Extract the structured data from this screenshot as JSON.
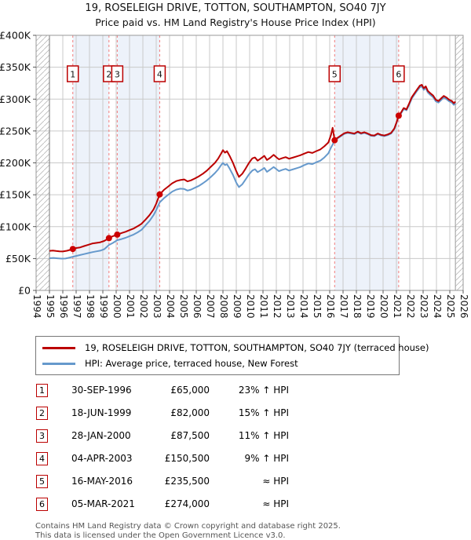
{
  "header": {
    "title": "19, ROSELEIGH DRIVE, TOTTON, SOUTHAMPTON, SO40 7JY",
    "subtitle": "Price paid vs. HM Land Registry's House Price Index (HPI)"
  },
  "legend": {
    "entries": [
      {
        "label": "19, ROSELEIGH DRIVE, TOTTON, SOUTHAMPTON, SO40 7JY (terraced house)",
        "color": "#bb0000"
      },
      {
        "label": "HPI: Average price, terraced house, New Forest",
        "color": "#6699cc"
      }
    ]
  },
  "table": {
    "rows": [
      {
        "num": "1",
        "date": "30-SEP-1996",
        "price": "£65,000",
        "hpi": "23% ↑ HPI"
      },
      {
        "num": "2",
        "date": "18-JUN-1999",
        "price": "£82,000",
        "hpi": "15% ↑ HPI"
      },
      {
        "num": "3",
        "date": "28-JAN-2000",
        "price": "£87,500",
        "hpi": "11% ↑ HPI"
      },
      {
        "num": "4",
        "date": "04-APR-2003",
        "price": "£150,500",
        "hpi": "9% ↑ HPI"
      },
      {
        "num": "5",
        "date": "16-MAY-2016",
        "price": "£235,500",
        "hpi": "≈ HPI"
      },
      {
        "num": "6",
        "date": "05-MAR-2021",
        "price": "£274,000",
        "hpi": "≈ HPI"
      }
    ]
  },
  "footer": {
    "line1": "Contains HM Land Registry data © Crown copyright and database right 2025.",
    "line2": "This data is licensed under the Open Government Licence v3.0."
  },
  "chart_data": {
    "type": "line",
    "title": "19, ROSELEIGH DRIVE, TOTTON, SOUTHAMPTON, SO40 7JY",
    "subtitle": "Price paid vs. HM Land Registry's House Price Index (HPI)",
    "xlabel": "",
    "ylabel": "",
    "x_range": [
      1994,
      2026
    ],
    "y_range_thousands": [
      0,
      400
    ],
    "unit": "GBP_thousands",
    "grid": true,
    "x_ticks": [
      1994,
      1995,
      1996,
      1997,
      1998,
      1999,
      2000,
      2001,
      2002,
      2003,
      2004,
      2005,
      2006,
      2007,
      2008,
      2009,
      2010,
      2011,
      2012,
      2013,
      2014,
      2015,
      2016,
      2017,
      2018,
      2019,
      2020,
      2021,
      2022,
      2023,
      2024,
      2025,
      2026
    ],
    "y_tick_values": [
      0,
      50,
      100,
      150,
      200,
      250,
      300,
      350,
      400
    ],
    "y_tick_labels": [
      "£0",
      "£50K",
      "£100K",
      "£150K",
      "£200K",
      "£250K",
      "£300K",
      "£350K",
      "£400K"
    ],
    "data_start": 1995.0,
    "data_end": 2025.42,
    "hatch_regions": [
      [
        1994,
        1995.0
      ],
      [
        2025.42,
        2026
      ]
    ],
    "shaded_bands": [
      [
        1996.75,
        1999.46
      ],
      [
        2000.08,
        2003.26
      ],
      [
        2016.37,
        2021.17
      ]
    ],
    "band_color": "#edf2fa",
    "grid_color": "#c9c9c9",
    "sale_line_color": "#f37c7c",
    "marker_box_color": "#bb0000",
    "sales": [
      {
        "n": "1",
        "x": 1996.75,
        "y": 65,
        "date": "30-SEP-1996"
      },
      {
        "n": "2",
        "x": 1999.46,
        "y": 82,
        "date": "18-JUN-1999"
      },
      {
        "n": "3",
        "x": 2000.08,
        "y": 87.5,
        "date": "28-JAN-2000"
      },
      {
        "n": "4",
        "x": 2003.26,
        "y": 150.5,
        "date": "04-APR-2003"
      },
      {
        "n": "5",
        "x": 2016.37,
        "y": 235.5,
        "date": "16-MAY-2016"
      },
      {
        "n": "6",
        "x": 2021.17,
        "y": 274,
        "date": "05-MAR-2021"
      }
    ],
    "series": [
      {
        "name": "19, ROSELEIGH DRIVE, TOTTON, SOUTHAMPTON, SO40 7JY (terraced house)",
        "color": "#bb0000",
        "points": [
          [
            1995.0,
            62
          ],
          [
            1995.25,
            62.5
          ],
          [
            1995.5,
            61.8
          ],
          [
            1995.75,
            61.2
          ],
          [
            1996.0,
            61
          ],
          [
            1996.3,
            62.2
          ],
          [
            1996.55,
            63.5
          ],
          [
            1996.75,
            65
          ],
          [
            1997.0,
            66.5
          ],
          [
            1997.3,
            67.5
          ],
          [
            1997.6,
            69.5
          ],
          [
            1997.9,
            71.5
          ],
          [
            1998.2,
            73.5
          ],
          [
            1998.5,
            74.5
          ],
          [
            1998.8,
            75.5
          ],
          [
            1999.1,
            77.5
          ],
          [
            1999.46,
            82
          ],
          [
            1999.75,
            85
          ],
          [
            2000.08,
            87.5
          ],
          [
            2000.4,
            90
          ],
          [
            2000.7,
            92
          ],
          [
            2001.0,
            94.5
          ],
          [
            2001.3,
            97
          ],
          [
            2001.6,
            100.5
          ],
          [
            2001.9,
            104.5
          ],
          [
            2002.2,
            111
          ],
          [
            2002.5,
            118
          ],
          [
            2002.8,
            127
          ],
          [
            2003.0,
            136
          ],
          [
            2003.26,
            150.5
          ],
          [
            2003.6,
            158
          ],
          [
            2003.9,
            163
          ],
          [
            2004.2,
            168
          ],
          [
            2004.5,
            171.5
          ],
          [
            2004.8,
            173
          ],
          [
            2005.1,
            174
          ],
          [
            2005.35,
            171
          ],
          [
            2005.6,
            172.5
          ],
          [
            2005.9,
            175.5
          ],
          [
            2006.2,
            179
          ],
          [
            2006.5,
            183
          ],
          [
            2006.8,
            188
          ],
          [
            2007.1,
            194
          ],
          [
            2007.4,
            200
          ],
          [
            2007.65,
            207
          ],
          [
            2007.85,
            214
          ],
          [
            2008.0,
            220
          ],
          [
            2008.15,
            216
          ],
          [
            2008.3,
            218.5
          ],
          [
            2008.5,
            211
          ],
          [
            2008.75,
            200
          ],
          [
            2009.0,
            187
          ],
          [
            2009.2,
            178
          ],
          [
            2009.45,
            183
          ],
          [
            2009.7,
            191
          ],
          [
            2009.95,
            200
          ],
          [
            2010.2,
            207
          ],
          [
            2010.4,
            208.5
          ],
          [
            2010.6,
            203.5
          ],
          [
            2010.85,
            207
          ],
          [
            2011.1,
            211
          ],
          [
            2011.3,
            204.5
          ],
          [
            2011.55,
            208
          ],
          [
            2011.8,
            212.5
          ],
          [
            2012.05,
            208
          ],
          [
            2012.2,
            205.5
          ],
          [
            2012.45,
            207.5
          ],
          [
            2012.7,
            209
          ],
          [
            2012.95,
            206.5
          ],
          [
            2013.2,
            208
          ],
          [
            2013.5,
            210
          ],
          [
            2013.8,
            212
          ],
          [
            2014.1,
            214.5
          ],
          [
            2014.4,
            217
          ],
          [
            2014.7,
            215.5
          ],
          [
            2015.0,
            218.5
          ],
          [
            2015.3,
            221
          ],
          [
            2015.6,
            226
          ],
          [
            2015.9,
            232
          ],
          [
            2016.1,
            244
          ],
          [
            2016.22,
            255
          ],
          [
            2016.37,
            235.5
          ],
          [
            2016.6,
            239.5
          ],
          [
            2016.85,
            243
          ],
          [
            2017.1,
            246.5
          ],
          [
            2017.35,
            248
          ],
          [
            2017.6,
            247
          ],
          [
            2017.85,
            246
          ],
          [
            2018.1,
            249
          ],
          [
            2018.35,
            246.5
          ],
          [
            2018.6,
            248
          ],
          [
            2018.85,
            246
          ],
          [
            2019.1,
            243.5
          ],
          [
            2019.35,
            243
          ],
          [
            2019.6,
            246
          ],
          [
            2019.85,
            244
          ],
          [
            2020.1,
            243
          ],
          [
            2020.35,
            244.5
          ],
          [
            2020.6,
            247
          ],
          [
            2020.85,
            254
          ],
          [
            2021.0,
            263
          ],
          [
            2021.17,
            274
          ],
          [
            2021.35,
            279
          ],
          [
            2021.55,
            286
          ],
          [
            2021.75,
            284
          ],
          [
            2021.95,
            293
          ],
          [
            2022.15,
            303
          ],
          [
            2022.35,
            309
          ],
          [
            2022.55,
            315
          ],
          [
            2022.75,
            321
          ],
          [
            2022.9,
            322.5
          ],
          [
            2023.05,
            317
          ],
          [
            2023.2,
            320
          ],
          [
            2023.35,
            313
          ],
          [
            2023.55,
            309
          ],
          [
            2023.75,
            305.5
          ],
          [
            2023.95,
            299
          ],
          [
            2024.15,
            297
          ],
          [
            2024.35,
            301
          ],
          [
            2024.55,
            305
          ],
          [
            2024.75,
            302.5
          ],
          [
            2024.95,
            299
          ],
          [
            2025.15,
            297
          ],
          [
            2025.3,
            293.5
          ],
          [
            2025.42,
            296
          ]
        ]
      },
      {
        "name": "HPI: Average price, terraced house, New Forest",
        "color": "#6699cc",
        "points": [
          [
            1995.0,
            50.5
          ],
          [
            1995.3,
            51
          ],
          [
            1995.6,
            50.3
          ],
          [
            1995.9,
            49.8
          ],
          [
            1996.2,
            50
          ],
          [
            1996.5,
            51.5
          ],
          [
            1996.75,
            52.8
          ],
          [
            1997.0,
            54
          ],
          [
            1997.3,
            55.5
          ],
          [
            1997.6,
            57
          ],
          [
            1997.9,
            58.5
          ],
          [
            1998.2,
            60
          ],
          [
            1998.5,
            61.2
          ],
          [
            1998.8,
            62.3
          ],
          [
            1999.1,
            64.5
          ],
          [
            1999.46,
            71.3
          ],
          [
            1999.75,
            74.5
          ],
          [
            2000.08,
            78.8
          ],
          [
            2000.4,
            80.5
          ],
          [
            2000.7,
            82.5
          ],
          [
            2001.0,
            85
          ],
          [
            2001.3,
            87.5
          ],
          [
            2001.6,
            91
          ],
          [
            2001.9,
            95
          ],
          [
            2002.2,
            102
          ],
          [
            2002.5,
            109
          ],
          [
            2002.8,
            118
          ],
          [
            2003.0,
            126
          ],
          [
            2003.26,
            138
          ],
          [
            2003.6,
            145
          ],
          [
            2003.9,
            150
          ],
          [
            2004.2,
            155
          ],
          [
            2004.5,
            158
          ],
          [
            2004.8,
            159.5
          ],
          [
            2005.1,
            159
          ],
          [
            2005.35,
            156.5
          ],
          [
            2005.6,
            158
          ],
          [
            2005.9,
            161
          ],
          [
            2006.2,
            164
          ],
          [
            2006.5,
            168
          ],
          [
            2006.8,
            172.5
          ],
          [
            2007.1,
            178
          ],
          [
            2007.4,
            184
          ],
          [
            2007.65,
            190
          ],
          [
            2007.85,
            196
          ],
          [
            2008.0,
            200
          ],
          [
            2008.15,
            196.5
          ],
          [
            2008.3,
            198
          ],
          [
            2008.5,
            191
          ],
          [
            2008.75,
            181
          ],
          [
            2009.0,
            169
          ],
          [
            2009.2,
            162
          ],
          [
            2009.45,
            166.5
          ],
          [
            2009.7,
            174
          ],
          [
            2009.95,
            182
          ],
          [
            2010.2,
            188
          ],
          [
            2010.4,
            190
          ],
          [
            2010.6,
            185.5
          ],
          [
            2010.85,
            188.5
          ],
          [
            2011.1,
            192
          ],
          [
            2011.3,
            186
          ],
          [
            2011.55,
            189.5
          ],
          [
            2011.8,
            193.5
          ],
          [
            2012.05,
            189.5
          ],
          [
            2012.2,
            187
          ],
          [
            2012.45,
            189
          ],
          [
            2012.7,
            190.5
          ],
          [
            2012.95,
            188
          ],
          [
            2013.2,
            189.5
          ],
          [
            2013.5,
            191.5
          ],
          [
            2013.8,
            193.5
          ],
          [
            2014.1,
            196.5
          ],
          [
            2014.4,
            199
          ],
          [
            2014.7,
            198
          ],
          [
            2015.0,
            201
          ],
          [
            2015.3,
            203.5
          ],
          [
            2015.6,
            208.5
          ],
          [
            2015.9,
            215
          ],
          [
            2016.1,
            224
          ],
          [
            2016.25,
            230
          ],
          [
            2016.37,
            235
          ],
          [
            2016.6,
            238.5
          ],
          [
            2016.85,
            242
          ],
          [
            2017.1,
            245.5
          ],
          [
            2017.35,
            247
          ],
          [
            2017.6,
            246
          ],
          [
            2017.85,
            245
          ],
          [
            2018.1,
            248
          ],
          [
            2018.35,
            245.5
          ],
          [
            2018.6,
            247
          ],
          [
            2018.85,
            245
          ],
          [
            2019.1,
            242.5
          ],
          [
            2019.35,
            242
          ],
          [
            2019.6,
            245
          ],
          [
            2019.85,
            243
          ],
          [
            2020.1,
            242
          ],
          [
            2020.35,
            243.5
          ],
          [
            2020.6,
            246
          ],
          [
            2020.85,
            253
          ],
          [
            2021.0,
            262
          ],
          [
            2021.17,
            272.5
          ],
          [
            2021.35,
            277.5
          ],
          [
            2021.55,
            284.5
          ],
          [
            2021.75,
            282.5
          ],
          [
            2021.95,
            291
          ],
          [
            2022.15,
            301
          ],
          [
            2022.35,
            307
          ],
          [
            2022.55,
            313
          ],
          [
            2022.75,
            318.5
          ],
          [
            2022.9,
            320
          ],
          [
            2023.05,
            314.5
          ],
          [
            2023.2,
            317.5
          ],
          [
            2023.35,
            310.5
          ],
          [
            2023.55,
            306.5
          ],
          [
            2023.75,
            303
          ],
          [
            2023.95,
            296.5
          ],
          [
            2024.15,
            294.5
          ],
          [
            2024.35,
            298.5
          ],
          [
            2024.55,
            302.5
          ],
          [
            2024.75,
            300
          ],
          [
            2024.95,
            296.5
          ],
          [
            2025.15,
            294.5
          ],
          [
            2025.3,
            291
          ],
          [
            2025.42,
            293.5
          ]
        ]
      }
    ]
  }
}
